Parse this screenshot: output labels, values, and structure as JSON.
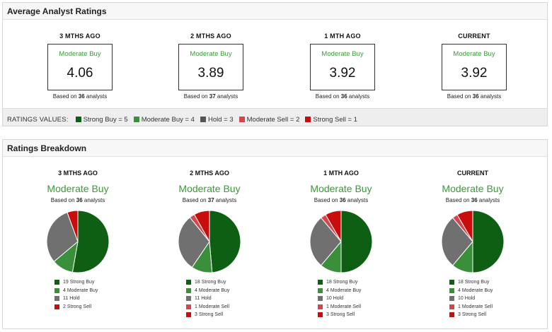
{
  "colors": {
    "strong_buy": "#0e5e14",
    "moderate_buy": "#3a8f3a",
    "hold": "#707070",
    "moderate_sell": "#d6444c",
    "strong_sell": "#c90d0d",
    "rating_text": "#3a9a36"
  },
  "average": {
    "title": "Average Analyst Ratings",
    "periods": [
      {
        "label": "3 MTHS AGO",
        "rating": "Moderate Buy",
        "value": "4.06",
        "based_prefix": "Based on ",
        "count": "36",
        "based_suffix": " analysts"
      },
      {
        "label": "2 MTHS AGO",
        "rating": "Moderate Buy",
        "value": "3.89",
        "based_prefix": "Based on ",
        "count": "37",
        "based_suffix": " analysts"
      },
      {
        "label": "1 MTH AGO",
        "rating": "Moderate Buy",
        "value": "3.92",
        "based_prefix": "Based on ",
        "count": "36",
        "based_suffix": " analysts"
      },
      {
        "label": "CURRENT",
        "rating": "Moderate Buy",
        "value": "3.92",
        "based_prefix": "Based on ",
        "count": "36",
        "based_suffix": " analysts"
      }
    ],
    "ratings_values": {
      "title": "RATINGS VALUES:",
      "items": [
        {
          "label": "Strong Buy = 5",
          "color": "#0e5e14"
        },
        {
          "label": "Moderate Buy = 4",
          "color": "#3a8f3a"
        },
        {
          "label": "Hold = 3",
          "color": "#555555"
        },
        {
          "label": "Moderate Sell = 2",
          "color": "#d6444c"
        },
        {
          "label": "Strong Sell = 1",
          "color": "#c90d0d"
        }
      ]
    }
  },
  "breakdown": {
    "title": "Ratings Breakdown",
    "periods": [
      {
        "label": "3 MTHS AGO",
        "rating": "Moderate Buy",
        "based_prefix": "Based on ",
        "count": "36",
        "based_suffix": " analysts",
        "slices": [
          {
            "label": "19 Strong Buy",
            "value": 19,
            "color": "#0e5e14"
          },
          {
            "label": "4 Moderate Buy",
            "value": 4,
            "color": "#3a8f3a"
          },
          {
            "label": "11 Hold",
            "value": 11,
            "color": "#707070"
          },
          {
            "label": "2 Strong Sell",
            "value": 2,
            "color": "#c90d0d"
          }
        ]
      },
      {
        "label": "2 MTHS AGO",
        "rating": "Moderate Buy",
        "based_prefix": "Based on ",
        "count": "37",
        "based_suffix": " analysts",
        "slices": [
          {
            "label": "18 Strong Buy",
            "value": 18,
            "color": "#0e5e14"
          },
          {
            "label": "4 Moderate Buy",
            "value": 4,
            "color": "#3a8f3a"
          },
          {
            "label": "11 Hold",
            "value": 11,
            "color": "#707070"
          },
          {
            "label": "1 Moderate Sell",
            "value": 1,
            "color": "#d6444c"
          },
          {
            "label": "3 Strong Sell",
            "value": 3,
            "color": "#c90d0d"
          }
        ]
      },
      {
        "label": "1 MTH AGO",
        "rating": "Moderate Buy",
        "based_prefix": "Based on ",
        "count": "36",
        "based_suffix": " analysts",
        "slices": [
          {
            "label": "18 Strong Buy",
            "value": 18,
            "color": "#0e5e14"
          },
          {
            "label": "4 Moderate Buy",
            "value": 4,
            "color": "#3a8f3a"
          },
          {
            "label": "10 Hold",
            "value": 10,
            "color": "#707070"
          },
          {
            "label": "1 Moderate Sell",
            "value": 1,
            "color": "#d6444c"
          },
          {
            "label": "3 Strong Sell",
            "value": 3,
            "color": "#c90d0d"
          }
        ]
      },
      {
        "label": "CURRENT",
        "rating": "Moderate Buy",
        "based_prefix": "Based on ",
        "count": "36",
        "based_suffix": " analysts",
        "slices": [
          {
            "label": "18 Strong Buy",
            "value": 18,
            "color": "#0e5e14"
          },
          {
            "label": "4 Moderate Buy",
            "value": 4,
            "color": "#3a8f3a"
          },
          {
            "label": "10 Hold",
            "value": 10,
            "color": "#707070"
          },
          {
            "label": "1 Moderate Sell",
            "value": 1,
            "color": "#d6444c"
          },
          {
            "label": "3 Strong Sell",
            "value": 3,
            "color": "#c90d0d"
          }
        ]
      }
    ]
  }
}
